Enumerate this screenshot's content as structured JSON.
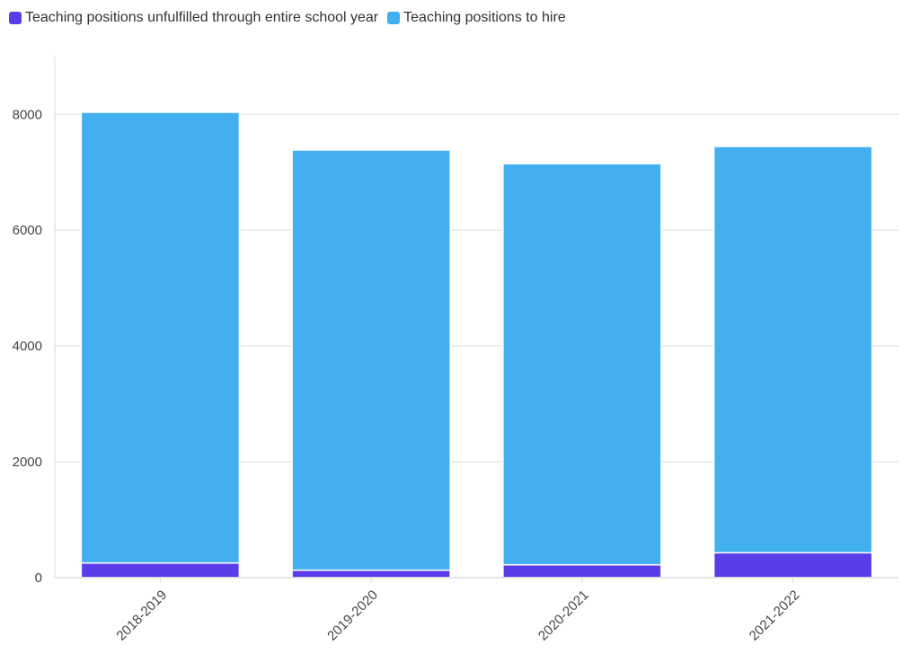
{
  "chart_data": {
    "type": "bar",
    "stacked": true,
    "title": "",
    "xlabel": "",
    "ylabel": "",
    "categories": [
      "2018-2019",
      "2019-2020",
      "2020-2021",
      "2021-2022"
    ],
    "series": [
      {
        "name": "Teaching positions unfulfilled through entire school year",
        "color": "#5a3de8",
        "values": [
          253,
          129,
          222,
          430
        ]
      },
      {
        "name": "Teaching positions to hire",
        "color": "#41aff0",
        "values": [
          7783,
          7255,
          6925,
          7016
        ]
      }
    ],
    "ylim": [
      0,
      9000
    ],
    "yticks": [
      0,
      2000,
      4000,
      6000,
      8000
    ],
    "grid": true,
    "legend": "top-left"
  }
}
